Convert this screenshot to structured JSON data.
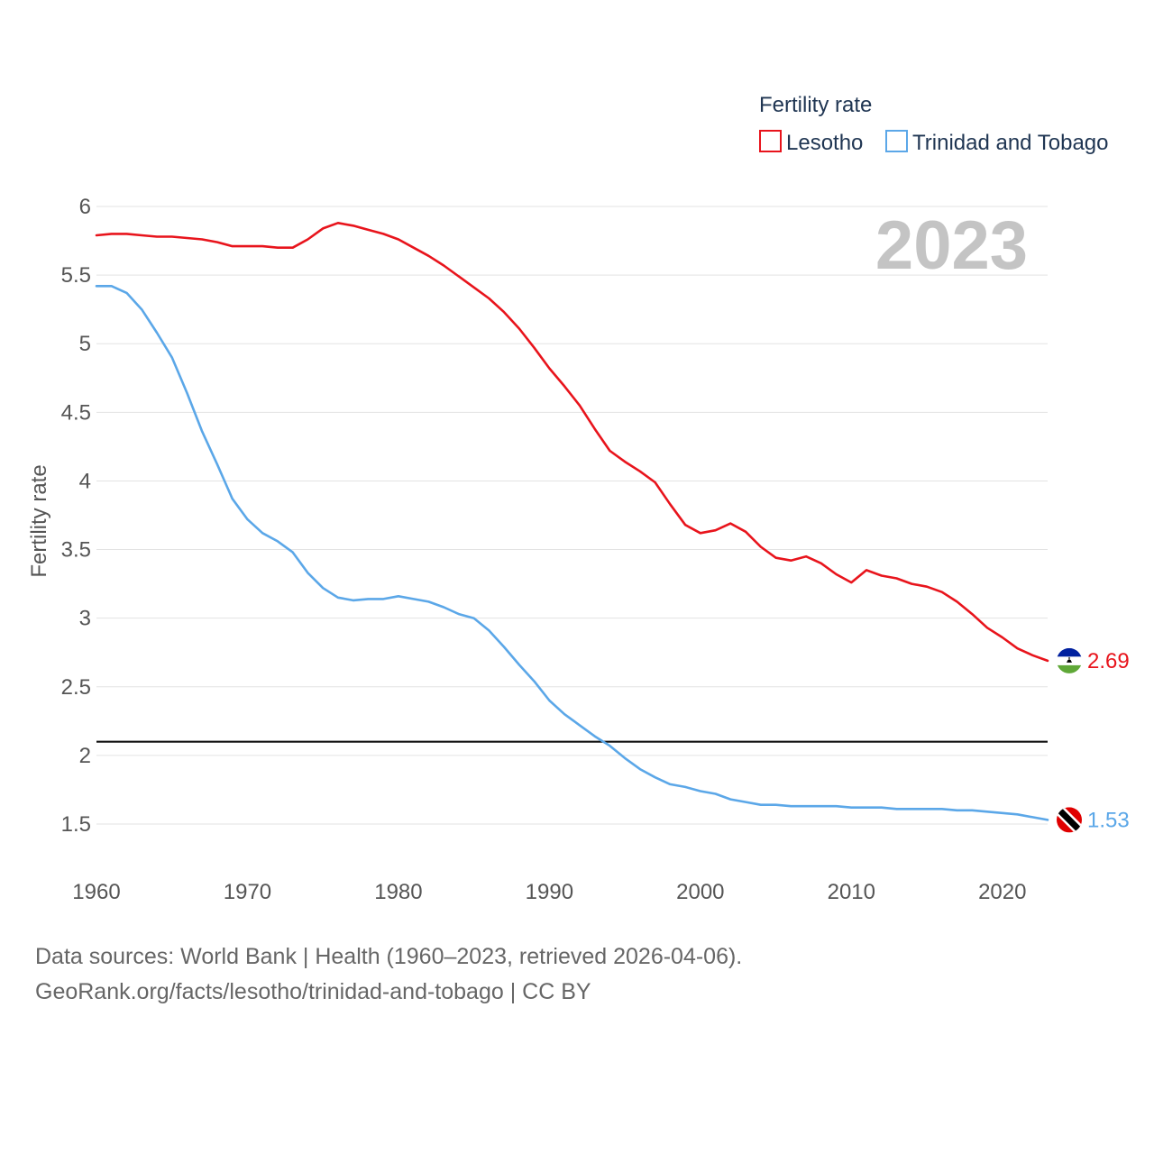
{
  "chart_data": {
    "type": "line",
    "legend_title": "Fertility rate",
    "ylabel": "Fertility rate",
    "xlabel": "",
    "year_label": "2023",
    "xlim": [
      1960,
      2023
    ],
    "ylim": [
      1.5,
      6
    ],
    "x_ticks": [
      1960,
      1970,
      1980,
      1990,
      2000,
      2010,
      2020
    ],
    "y_ticks": [
      "1.5",
      "2",
      "2.5",
      "3",
      "3.5",
      "4",
      "4.5",
      "5",
      "5.5",
      "6"
    ],
    "reference_line": 2.1,
    "legend_position": "top-right",
    "series": [
      {
        "name": "Lesotho",
        "color": "#e8141c",
        "flag": "lesotho-flag-icon",
        "end_label": "2.69",
        "x": [
          1960,
          1961,
          1962,
          1963,
          1964,
          1965,
          1966,
          1967,
          1968,
          1969,
          1970,
          1971,
          1972,
          1973,
          1974,
          1975,
          1976,
          1977,
          1978,
          1979,
          1980,
          1981,
          1982,
          1983,
          1984,
          1985,
          1986,
          1987,
          1988,
          1989,
          1990,
          1991,
          1992,
          1993,
          1994,
          1995,
          1996,
          1997,
          1998,
          1999,
          2000,
          2001,
          2002,
          2003,
          2004,
          2005,
          2006,
          2007,
          2008,
          2009,
          2010,
          2011,
          2012,
          2013,
          2014,
          2015,
          2016,
          2017,
          2018,
          2019,
          2020,
          2021,
          2022,
          2023
        ],
        "values": [
          5.79,
          5.8,
          5.8,
          5.79,
          5.78,
          5.78,
          5.77,
          5.76,
          5.74,
          5.71,
          5.71,
          5.71,
          5.7,
          5.7,
          5.76,
          5.84,
          5.88,
          5.86,
          5.83,
          5.8,
          5.76,
          5.7,
          5.64,
          5.57,
          5.49,
          5.41,
          5.33,
          5.23,
          5.11,
          4.97,
          4.82,
          4.69,
          4.55,
          4.38,
          4.22,
          4.14,
          4.07,
          3.99,
          3.83,
          3.68,
          3.62,
          3.64,
          3.69,
          3.63,
          3.52,
          3.44,
          3.42,
          3.45,
          3.4,
          3.32,
          3.26,
          3.35,
          3.31,
          3.29,
          3.25,
          3.23,
          3.19,
          3.12,
          3.03,
          2.93,
          2.86,
          2.78,
          2.73,
          2.69
        ]
      },
      {
        "name": "Trinidad and Tobago",
        "color": "#5ba7e8",
        "flag": "trinidad-and-tobago-flag-icon",
        "end_label": "1.53",
        "x": [
          1960,
          1961,
          1962,
          1963,
          1964,
          1965,
          1966,
          1967,
          1968,
          1969,
          1970,
          1971,
          1972,
          1973,
          1974,
          1975,
          1976,
          1977,
          1978,
          1979,
          1980,
          1981,
          1982,
          1983,
          1984,
          1985,
          1986,
          1987,
          1988,
          1989,
          1990,
          1991,
          1992,
          1993,
          1994,
          1995,
          1996,
          1997,
          1998,
          1999,
          2000,
          2001,
          2002,
          2003,
          2004,
          2005,
          2006,
          2007,
          2008,
          2009,
          2010,
          2011,
          2012,
          2013,
          2014,
          2015,
          2016,
          2017,
          2018,
          2019,
          2020,
          2021,
          2022,
          2023
        ],
        "values": [
          5.42,
          5.42,
          5.37,
          5.25,
          5.08,
          4.9,
          4.64,
          4.36,
          4.12,
          3.87,
          3.72,
          3.62,
          3.56,
          3.48,
          3.33,
          3.22,
          3.15,
          3.13,
          3.14,
          3.14,
          3.16,
          3.14,
          3.12,
          3.08,
          3.03,
          3.0,
          2.91,
          2.79,
          2.66,
          2.54,
          2.4,
          2.3,
          2.22,
          2.14,
          2.07,
          1.98,
          1.9,
          1.84,
          1.79,
          1.77,
          1.74,
          1.72,
          1.68,
          1.66,
          1.64,
          1.64,
          1.63,
          1.63,
          1.63,
          1.63,
          1.62,
          1.62,
          1.62,
          1.61,
          1.61,
          1.61,
          1.61,
          1.6,
          1.6,
          1.59,
          1.58,
          1.57,
          1.55,
          1.53
        ]
      }
    ]
  },
  "source": {
    "line1": "Data sources: World Bank | Health (1960–2023, retrieved 2026-04-06).",
    "line2": "GeoRank.org/facts/lesotho/trinidad-and-tobago | CC BY"
  }
}
